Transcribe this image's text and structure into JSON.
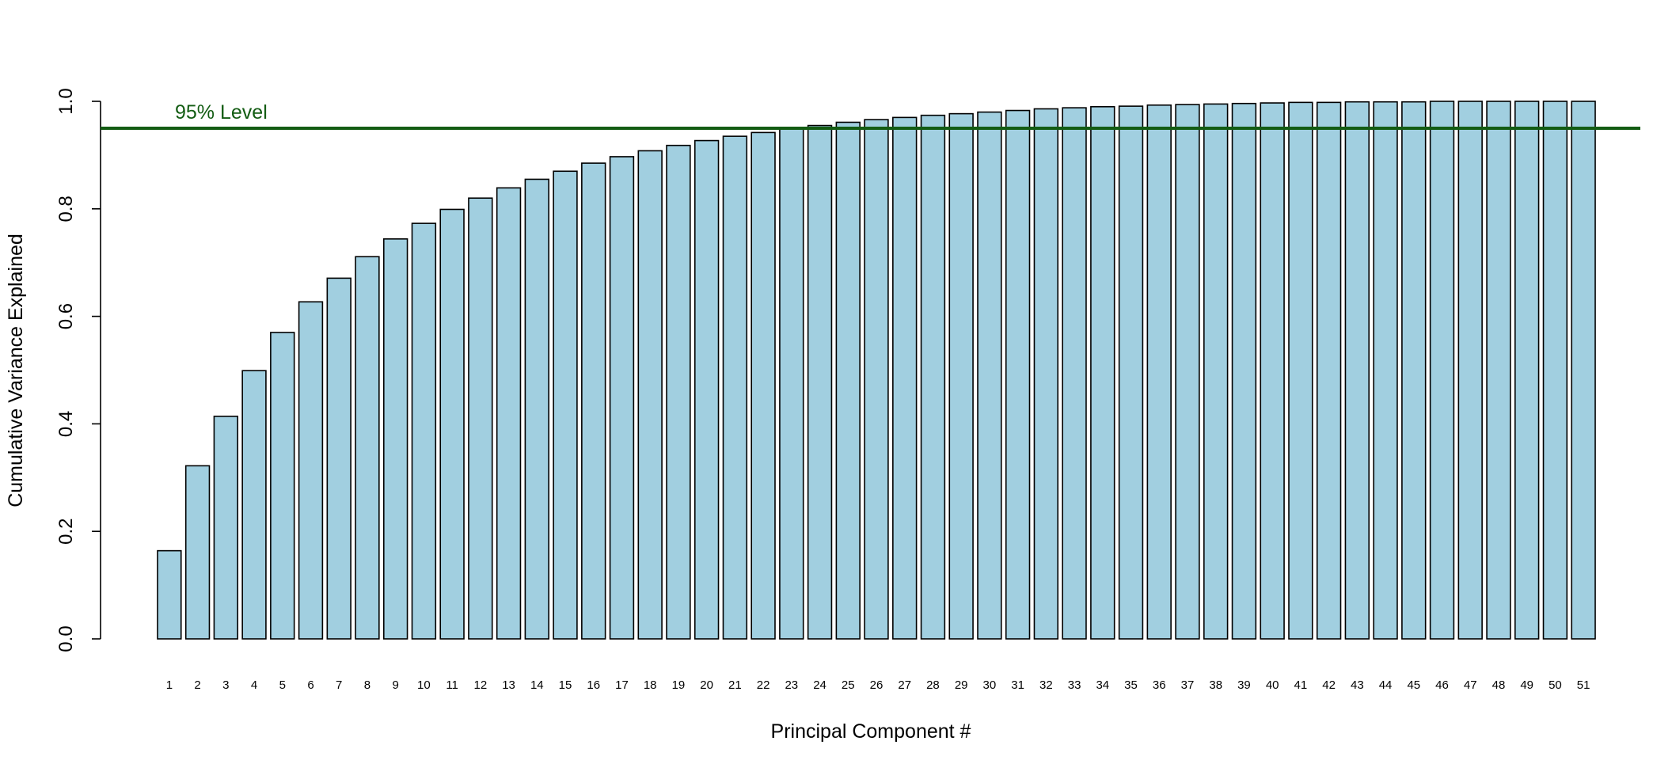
{
  "chart_data": {
    "type": "bar",
    "title": "",
    "xlabel": "Principal Component #",
    "ylabel": "Cumulative Variance Explained",
    "ylim": [
      0,
      1.0
    ],
    "yticks": [
      0.0,
      0.2,
      0.4,
      0.6,
      0.8,
      1.0
    ],
    "ytick_labels": [
      "0.0",
      "0.2",
      "0.4",
      "0.6",
      "0.8",
      "1.0"
    ],
    "categories": [
      "1",
      "2",
      "3",
      "4",
      "5",
      "6",
      "7",
      "8",
      "9",
      "10",
      "11",
      "12",
      "13",
      "14",
      "15",
      "16",
      "17",
      "18",
      "19",
      "20",
      "21",
      "22",
      "23",
      "24",
      "25",
      "26",
      "27",
      "28",
      "29",
      "30",
      "31",
      "32",
      "33",
      "34",
      "35",
      "36",
      "37",
      "38",
      "39",
      "40",
      "41",
      "42",
      "43",
      "44",
      "45",
      "46",
      "47",
      "48",
      "49",
      "50",
      "51"
    ],
    "values": [
      0.164,
      0.322,
      0.414,
      0.499,
      0.57,
      0.627,
      0.671,
      0.711,
      0.744,
      0.773,
      0.799,
      0.82,
      0.839,
      0.855,
      0.87,
      0.885,
      0.897,
      0.908,
      0.918,
      0.927,
      0.935,
      0.942,
      0.949,
      0.955,
      0.961,
      0.966,
      0.97,
      0.974,
      0.977,
      0.98,
      0.983,
      0.986,
      0.988,
      0.99,
      0.991,
      0.993,
      0.994,
      0.995,
      0.996,
      0.997,
      0.998,
      0.998,
      0.999,
      0.999,
      0.999,
      1.0,
      1.0,
      1.0,
      1.0,
      1.0,
      1.0
    ],
    "bar_color": "#a1cfe0",
    "bar_edge_color": "#000000",
    "reference_line": {
      "value": 0.95,
      "label": "95% Level",
      "color": "#135c13"
    },
    "grid": false,
    "legend": "none"
  }
}
